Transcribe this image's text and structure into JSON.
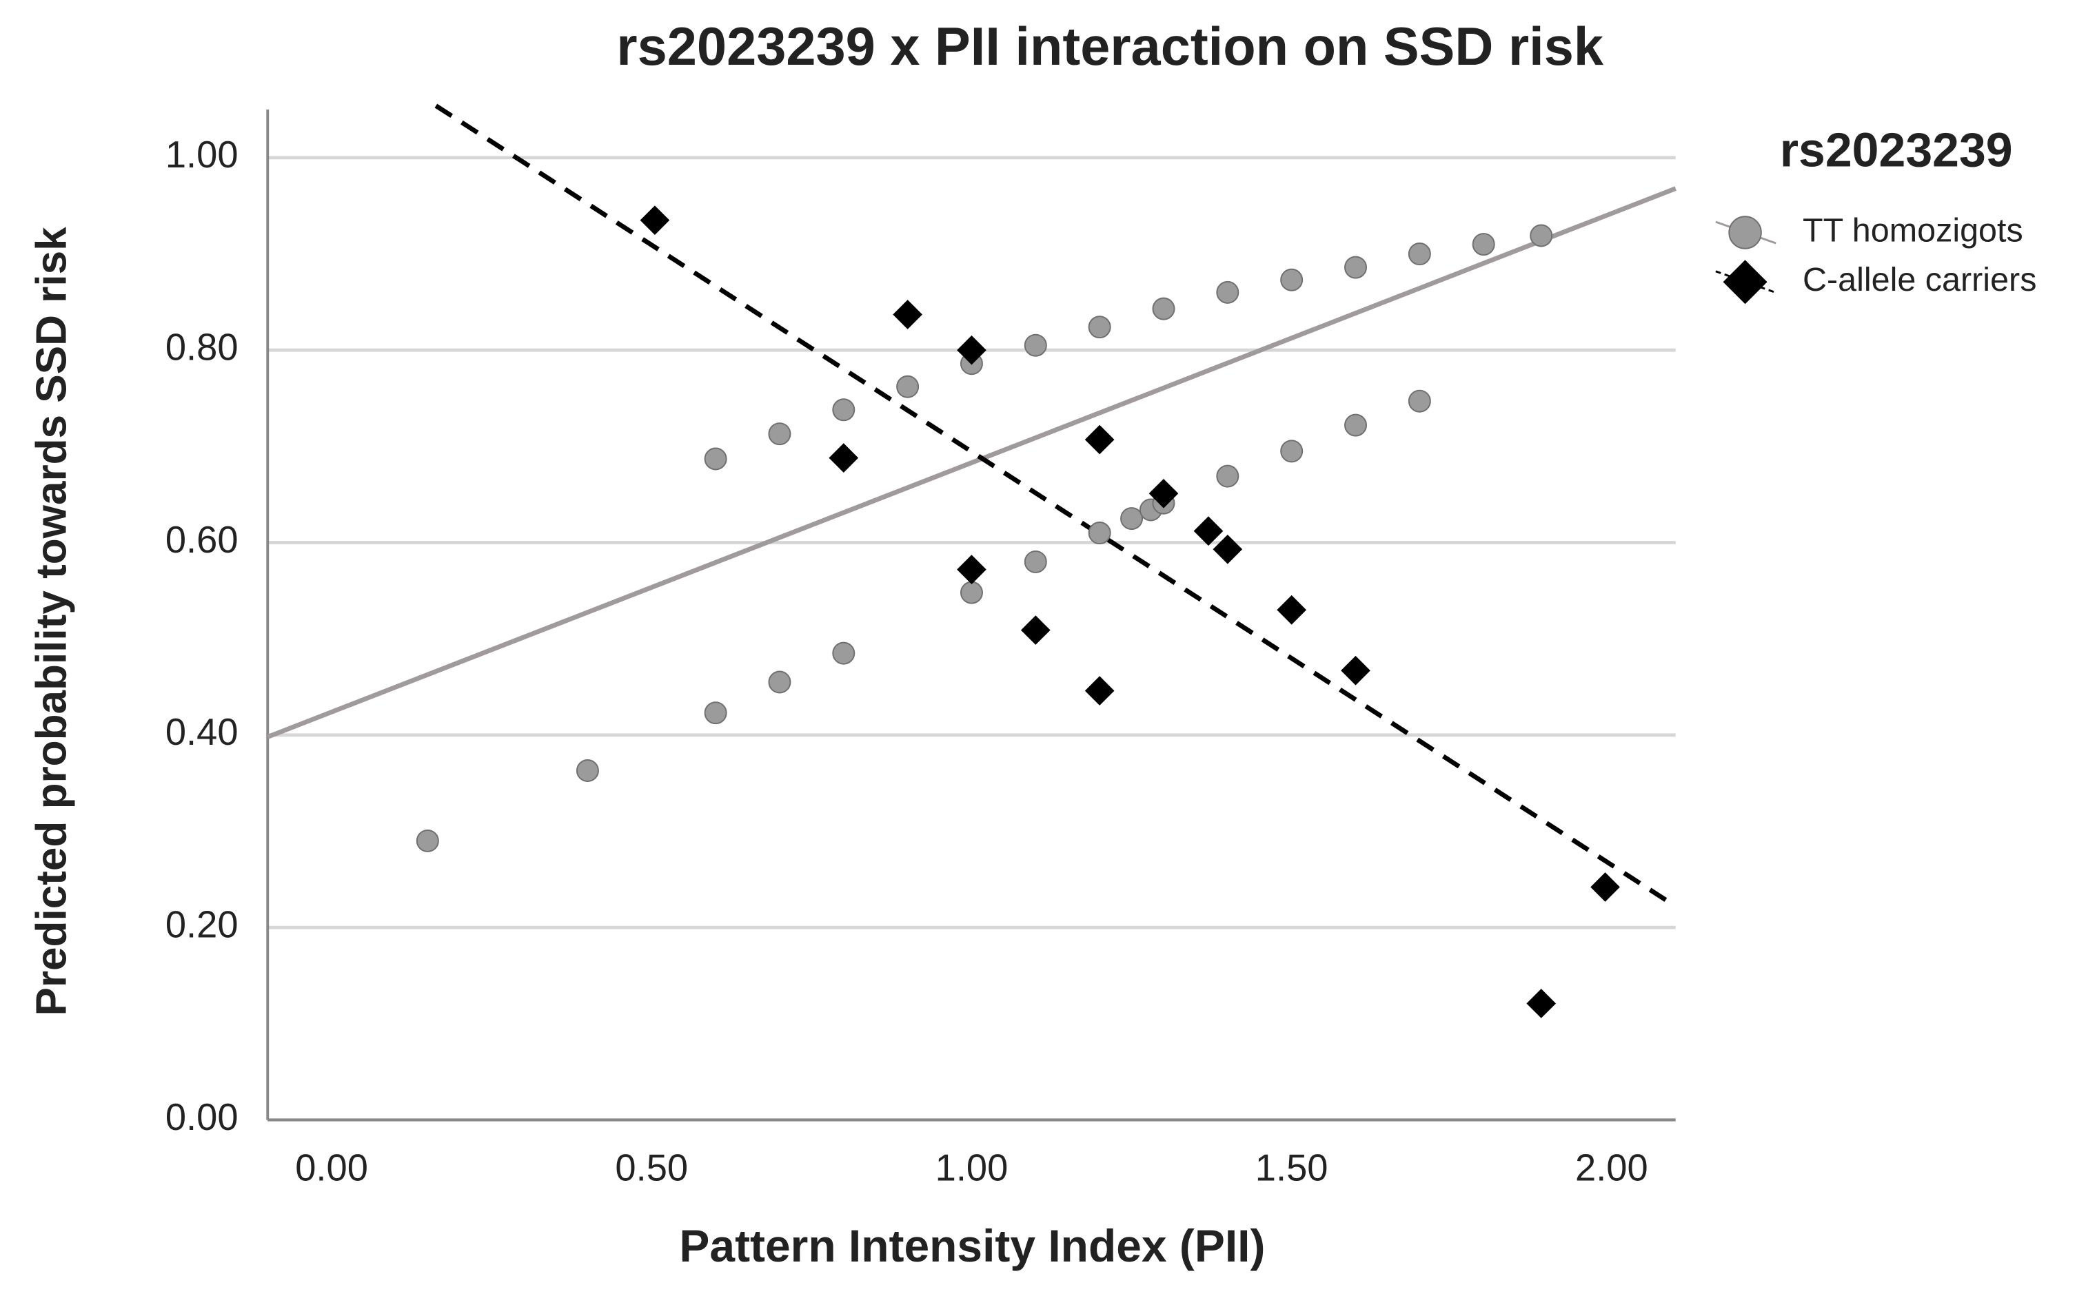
{
  "chart_data": {
    "type": "scatter",
    "title": "rs2023239 x PII interaction on SSD risk",
    "x_label": "Pattern Intensity Index (PII)",
    "y_label": "Predicted probability towards SSD risk",
    "legend_title": "rs2023239",
    "legend": "right",
    "grid": true,
    "xlim": [
      -0.1,
      2.1
    ],
    "ylim": [
      0,
      1.05
    ],
    "xticks": [
      {
        "value": 0,
        "label": "0.00"
      },
      {
        "value": 0.5,
        "label": "0.50"
      },
      {
        "value": 1,
        "label": "1.00"
      },
      {
        "value": 1.5,
        "label": "1.50"
      },
      {
        "value": 2,
        "label": "2.00"
      }
    ],
    "yticks": [
      {
        "value": 0,
        "label": "0.00"
      },
      {
        "value": 0.2,
        "label": "0.20"
      },
      {
        "value": 0.4,
        "label": "0.40"
      },
      {
        "value": 0.6,
        "label": "0.60"
      },
      {
        "value": 0.8,
        "label": "0.80"
      },
      {
        "value": 1,
        "label": "1.00"
      }
    ],
    "series": [
      {
        "name": "TT homozigots",
        "color": "#9b9b9b",
        "marker": "circle",
        "x": [
          0.15,
          0.4,
          0.6,
          0.7,
          0.8,
          0.6,
          0.7,
          0.8,
          0.9,
          1.0,
          1.0,
          1.1,
          1.1,
          1.2,
          1.2,
          1.25,
          1.28,
          1.3,
          1.3,
          1.4,
          1.4,
          1.5,
          1.5,
          1.6,
          1.6,
          1.7,
          1.7,
          1.8,
          1.89
        ],
        "values": [
          0.29,
          0.363,
          0.423,
          0.455,
          0.485,
          0.687,
          0.713,
          0.738,
          0.762,
          0.786,
          0.548,
          0.58,
          0.805,
          0.824,
          0.61,
          0.625,
          0.634,
          0.641,
          0.843,
          0.86,
          0.669,
          0.873,
          0.695,
          0.886,
          0.722,
          0.9,
          0.747,
          0.91,
          0.919
        ],
        "fit": {
          "x": [
            -0.1,
            2.1
          ],
          "values": [
            0.398,
            0.968
          ],
          "color": "#a09a9c",
          "dash": false
        }
      },
      {
        "name": "C-allele carriers",
        "color": "#000000",
        "marker": "diamond",
        "x": [
          0.505,
          0.9,
          1.0,
          0.8,
          1.2,
          1.3,
          1.37,
          1.4,
          1.0,
          1.1,
          1.2,
          1.5,
          1.6,
          1.99,
          1.89
        ],
        "values": [
          0.935,
          0.837,
          0.8,
          0.688,
          0.707,
          0.651,
          0.612,
          0.593,
          0.572,
          0.509,
          0.446,
          0.53,
          0.467,
          0.242,
          0.121
        ],
        "fit": {
          "x": [
            0.163,
            2.1
          ],
          "values": [
            1.054,
            0.222
          ],
          "color": "#000000",
          "dash": true
        }
      }
    ]
  }
}
